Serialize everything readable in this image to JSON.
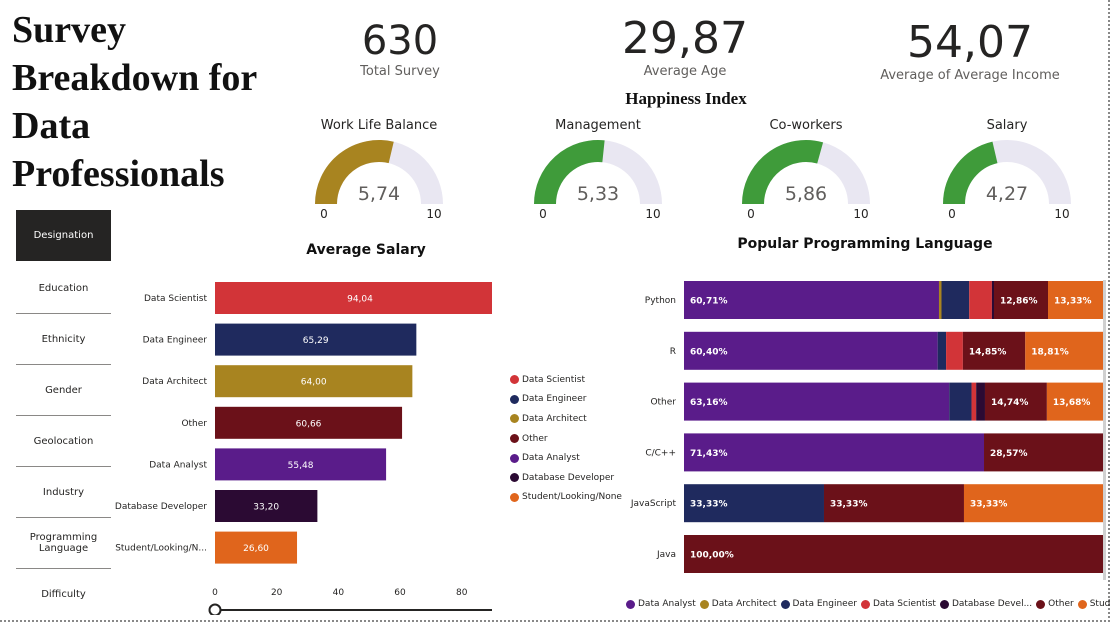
{
  "title": "Survey Breakdown for Data Professionals",
  "kpis": [
    {
      "value": "630",
      "label": "Total Survey"
    },
    {
      "value": "29,87",
      "label": "Average Age"
    },
    {
      "value": "54,07",
      "label": "Average of Average Income"
    }
  ],
  "happiness_title": "Happiness Index",
  "gauges": [
    {
      "label": "Work Life Balance",
      "value": 5.74,
      "display": "5,74",
      "min": "0",
      "max": "10",
      "color": "#a88420"
    },
    {
      "label": "Management",
      "value": 5.33,
      "display": "5,33",
      "min": "0",
      "max": "10",
      "color": "#3f9b3a"
    },
    {
      "label": "Co-workers",
      "value": 5.86,
      "display": "5,86",
      "min": "0",
      "max": "10",
      "color": "#3f9b3a"
    },
    {
      "label": "Salary",
      "value": 4.27,
      "display": "4,27",
      "min": "0",
      "max": "10",
      "color": "#3f9b3a"
    }
  ],
  "nav": [
    "Designation",
    "Education",
    "Ethnicity",
    "Gender",
    "Geolocation",
    "Industry",
    "Programming Language",
    "Difficulty"
  ],
  "colors": {
    "Data Scientist": "#d23438",
    "Data Engineer": "#1f2a5e",
    "Data Architect": "#a88420",
    "Other": "#6b1119",
    "Data Analyst": "#5a1c8a",
    "Database Developer": "#2b0a33",
    "Student/Looking/None": "#e0651c",
    "track": "#e9e7f2"
  },
  "chart_data": [
    {
      "type": "bar",
      "orientation": "horizontal",
      "title": "Average Salary",
      "categories": [
        "Data Scientist",
        "Data Engineer",
        "Data Architect",
        "Other",
        "Data Analyst",
        "Database Developer",
        "Student/Looking/N..."
      ],
      "values": [
        94.04,
        65.29,
        64.0,
        60.66,
        55.48,
        33.2,
        26.6
      ],
      "value_labels": [
        "94,04",
        "65,29",
        "64,00",
        "60,66",
        "55,48",
        "33,20",
        "26,60"
      ],
      "xticks": [
        "0",
        "20",
        "40",
        "60",
        "80"
      ],
      "xlim": [
        0,
        94.04
      ],
      "legend": [
        "Data Scientist",
        "Data Engineer",
        "Data Architect",
        "Other",
        "Data Analyst",
        "Database Developer",
        "Student/Looking/None"
      ],
      "legend_position": "right"
    },
    {
      "type": "bar",
      "orientation": "horizontal",
      "stacked": "100%",
      "title": "Popular Programming Language",
      "categories": [
        "Python",
        "R",
        "Other",
        "C/C++",
        "JavaScript",
        "Java"
      ],
      "series_order": [
        "Data Analyst",
        "Data Architect",
        "Data Engineer",
        "Data Scientist",
        "Database Developer",
        "Other",
        "Student/Looking/None"
      ],
      "rows": [
        {
          "segments": [
            {
              "series": "Data Analyst",
              "pct": 60.71,
              "label": "60,71%"
            },
            {
              "series": "Data Architect",
              "pct": 0.6,
              "label": ""
            },
            {
              "series": "Data Engineer",
              "pct": 6.6,
              "label": ""
            },
            {
              "series": "Data Scientist",
              "pct": 5.4,
              "label": ""
            },
            {
              "series": "Database Developer",
              "pct": 0.5,
              "label": ""
            },
            {
              "series": "Other",
              "pct": 12.86,
              "label": "12,86%"
            },
            {
              "series": "Student/Looking/None",
              "pct": 13.33,
              "label": "13,33%"
            }
          ]
        },
        {
          "segments": [
            {
              "series": "Data Analyst",
              "pct": 60.4,
              "label": "60,40%"
            },
            {
              "series": "Data Engineer",
              "pct": 2.0,
              "label": ""
            },
            {
              "series": "Data Scientist",
              "pct": 4.0,
              "label": ""
            },
            {
              "series": "Other",
              "pct": 14.85,
              "label": "14,85%"
            },
            {
              "series": "Student/Looking/None",
              "pct": 18.81,
              "label": "18,81%"
            }
          ]
        },
        {
          "segments": [
            {
              "series": "Data Analyst",
              "pct": 63.16,
              "label": "63,16%"
            },
            {
              "series": "Data Engineer",
              "pct": 5.3,
              "label": ""
            },
            {
              "series": "Data Scientist",
              "pct": 1.1,
              "label": ""
            },
            {
              "series": "Database Developer",
              "pct": 2.1,
              "label": ""
            },
            {
              "series": "Other",
              "pct": 14.74,
              "label": "14,74%"
            },
            {
              "series": "Student/Looking/None",
              "pct": 13.68,
              "label": "13,68%"
            }
          ]
        },
        {
          "segments": [
            {
              "series": "Data Analyst",
              "pct": 71.43,
              "label": "71,43%"
            },
            {
              "series": "Other",
              "pct": 28.57,
              "label": "28,57%"
            }
          ]
        },
        {
          "segments": [
            {
              "series": "Data Engineer",
              "pct": 33.33,
              "label": "33,33%"
            },
            {
              "series": "Other",
              "pct": 33.33,
              "label": "33,33%"
            },
            {
              "series": "Student/Looking/None",
              "pct": 33.33,
              "label": "33,33%"
            }
          ]
        },
        {
          "segments": [
            {
              "series": "Other",
              "pct": 100.0,
              "label": "100,00%"
            }
          ]
        }
      ],
      "legend": [
        "Data Analyst",
        "Data Architect",
        "Data Engineer",
        "Data Scientist",
        "Database Devel...",
        "Other",
        "Student/Loo..."
      ],
      "legend_position": "bottom"
    }
  ]
}
